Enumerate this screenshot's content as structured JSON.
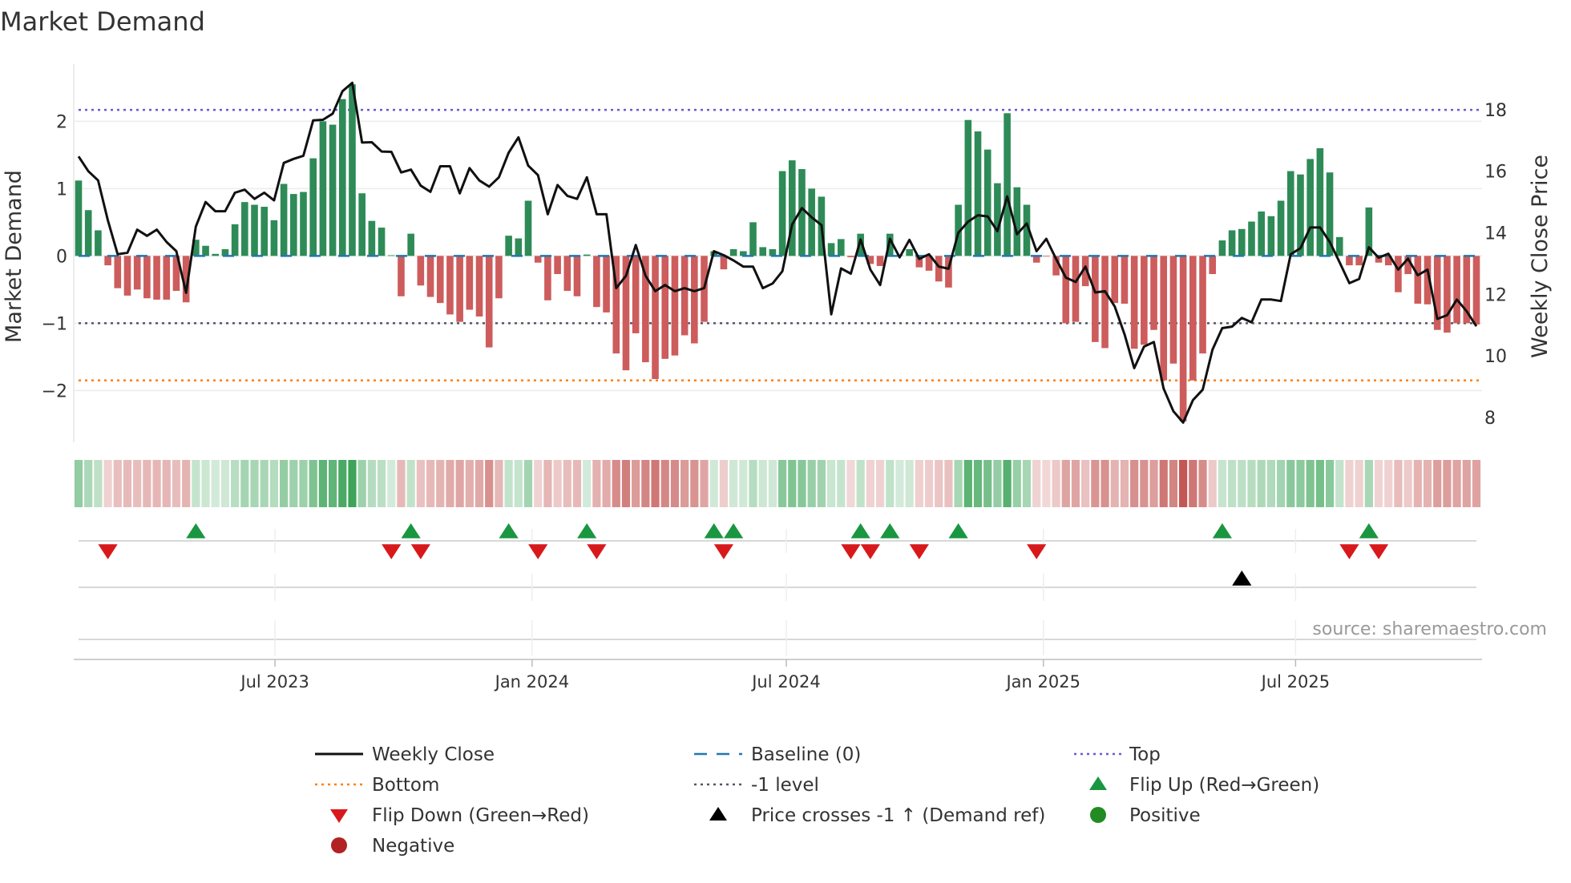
{
  "chart_data": {
    "type": "bar",
    "title": "Market Demand",
    "ylabel": "Market Demand",
    "y2label": "Weekly Close Price",
    "ylim": [
      -2.77,
      2.85
    ],
    "y2lim": [
      7.19,
      19.48
    ],
    "yticks": [
      2,
      1,
      0,
      -1,
      -2
    ],
    "ytick_labels": [
      "2",
      "1",
      "0",
      "−1",
      "−2"
    ],
    "y2ticks": [
      18,
      16,
      14,
      12,
      10,
      8
    ],
    "y2tick_labels": [
      "18",
      "16",
      "14",
      "12",
      "10",
      "8"
    ],
    "x_unit": "week index",
    "xticks": [
      {
        "label": "Jul 2023",
        "week": 20.1
      },
      {
        "label": "Jan 2024",
        "week": 46.4
      },
      {
        "label": "Jul 2024",
        "week": 72.4
      },
      {
        "label": "Jan 2025",
        "week": 98.7
      },
      {
        "label": "Jul 2025",
        "week": 124.5
      }
    ],
    "reference_lines": {
      "top": 2.17,
      "bottom": -1.85,
      "minus_one": -1.0,
      "baseline": 0
    },
    "demand": [
      1.12,
      0.68,
      0.38,
      -0.14,
      -0.48,
      -0.59,
      -0.5,
      -0.63,
      -0.65,
      -0.65,
      -0.52,
      -0.69,
      0.24,
      0.15,
      0.03,
      0.1,
      0.47,
      0.8,
      0.76,
      0.73,
      0.53,
      1.07,
      0.92,
      0.95,
      1.45,
      2.0,
      1.95,
      2.33,
      2.55,
      0.93,
      0.52,
      0.42,
      0.01,
      -0.6,
      0.33,
      -0.44,
      -0.61,
      -0.7,
      -0.87,
      -0.98,
      -0.8,
      -0.9,
      -1.36,
      -0.63,
      0.3,
      0.26,
      0.82,
      -0.1,
      -0.66,
      -0.27,
      -0.52,
      -0.6,
      0.02,
      -0.76,
      -0.84,
      -1.45,
      -1.7,
      -1.15,
      -1.58,
      -1.83,
      -1.53,
      -1.48,
      -1.18,
      -1.3,
      -0.98,
      0.07,
      -0.2,
      0.1,
      0.07,
      0.5,
      0.13,
      0.1,
      1.26,
      1.42,
      1.29,
      1.0,
      0.88,
      0.19,
      0.25,
      -0.02,
      0.33,
      -0.12,
      -0.15,
      0.33,
      0.01,
      0.1,
      -0.17,
      -0.22,
      -0.38,
      -0.47,
      0.76,
      2.02,
      1.85,
      1.58,
      1.08,
      2.12,
      1.02,
      0.76,
      -0.1,
      -0.01,
      -0.29,
      -1.0,
      -0.98,
      -0.45,
      -1.28,
      -1.37,
      -0.7,
      -0.71,
      -1.38,
      -1.32,
      -1.1,
      -1.85,
      -1.6,
      -2.46,
      -1.85,
      -1.45,
      -0.27,
      0.23,
      0.38,
      0.4,
      0.51,
      0.66,
      0.59,
      0.82,
      1.26,
      1.21,
      1.44,
      1.6,
      1.24,
      0.28,
      -0.14,
      -0.14,
      0.72,
      -0.1,
      -0.14,
      -0.54,
      -0.27,
      -0.71,
      -0.72,
      -1.1,
      -1.14,
      -1.0,
      -1.0,
      -1.02
    ],
    "weekly_close": [
      16.48,
      16.0,
      15.7,
      14.4,
      13.3,
      13.35,
      14.1,
      13.9,
      14.1,
      13.7,
      13.4,
      12.05,
      14.2,
      15.0,
      14.7,
      14.7,
      15.3,
      15.4,
      15.1,
      15.3,
      15.05,
      16.27,
      16.4,
      16.5,
      17.65,
      17.67,
      17.87,
      18.6,
      18.87,
      16.93,
      16.94,
      16.64,
      16.63,
      15.96,
      16.05,
      15.53,
      15.33,
      16.16,
      16.16,
      15.28,
      16.1,
      15.7,
      15.5,
      15.8,
      16.6,
      17.1,
      16.18,
      15.87,
      14.6,
      15.55,
      15.2,
      15.1,
      15.8,
      14.6,
      14.6,
      12.2,
      12.6,
      13.6,
      12.6,
      12.1,
      12.3,
      12.1,
      12.2,
      12.1,
      12.2,
      13.4,
      13.27,
      13.1,
      12.9,
      12.9,
      12.2,
      12.35,
      12.75,
      14.27,
      14.8,
      14.5,
      14.25,
      11.35,
      12.84,
      12.67,
      13.78,
      12.8,
      12.3,
      13.8,
      13.2,
      13.77,
      13.15,
      13.3,
      12.9,
      12.83,
      14.0,
      14.36,
      14.57,
      14.53,
      14.05,
      15.18,
      13.95,
      14.3,
      13.4,
      13.8,
      13.15,
      12.54,
      12.4,
      12.9,
      12.06,
      12.1,
      11.6,
      10.7,
      9.6,
      10.3,
      10.45,
      8.94,
      8.2,
      7.83,
      8.56,
      8.9,
      10.2,
      10.9,
      10.95,
      11.23,
      11.09,
      11.83,
      11.83,
      11.78,
      13.3,
      13.5,
      14.17,
      14.17,
      13.7,
      13.04,
      12.36,
      12.5,
      13.53,
      13.19,
      13.32,
      12.8,
      13.16,
      12.62,
      12.8,
      11.2,
      11.32,
      11.83,
      11.45,
      10.96
    ],
    "flip_up_weeks": [
      12,
      34,
      44,
      52,
      65,
      67,
      80,
      83,
      90,
      117,
      132
    ],
    "flip_down_weeks": [
      3,
      32,
      35,
      47,
      53,
      66,
      79,
      81,
      86,
      98,
      130,
      133
    ],
    "price_cross_weeks": [
      119
    ],
    "legend": [
      {
        "key": "weekly_close",
        "label": "Weekly Close"
      },
      {
        "key": "baseline",
        "label": "Baseline (0)"
      },
      {
        "key": "top",
        "label": "Top"
      },
      {
        "key": "bottom",
        "label": "Bottom"
      },
      {
        "key": "minus_one",
        "label": "-1 level"
      },
      {
        "key": "flip_up",
        "label": "Flip Up (Red→Green)"
      },
      {
        "key": "flip_down",
        "label": "Flip Down (Green→Red)"
      },
      {
        "key": "price_cross",
        "label": "Price crosses -1 ↑ (Demand ref)"
      },
      {
        "key": "positive",
        "label": "Positive"
      },
      {
        "key": "negative",
        "label": "Negative"
      }
    ],
    "legend_placement": "bottom-center",
    "source": "source: sharemaestro.com",
    "colors": {
      "positive": "#2e8b57",
      "negative": "#cd5c5c",
      "price": "#111111",
      "baseline": "#1f77b4",
      "top": "#6a5acd",
      "bottom": "#ff7f0e",
      "minus_one": "#555566",
      "flip_up": "#1a9641",
      "flip_down": "#d7191c",
      "cross": "#000000",
      "legend_positive": "#228b22",
      "legend_negative": "#b22222"
    }
  }
}
